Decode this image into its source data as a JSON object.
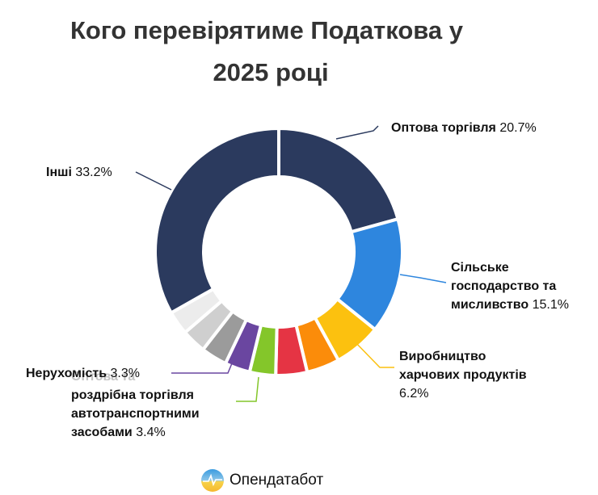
{
  "title_line1": "Кого перевірятиме Податкова у",
  "title_line2": "2025 році",
  "labels": {
    "wholesale": {
      "name": "Оптова торгівля",
      "value": "20.7%"
    },
    "agriculture": {
      "line1": "Сільське",
      "line2": "господарство та",
      "line3": "мисливство",
      "value": "15.1%"
    },
    "food": {
      "line1": "Виробництво",
      "line2": "харчових продуктів",
      "value": "6.2%"
    },
    "real_estate": {
      "name": "Нерухомість",
      "value": "3.3%"
    },
    "vehicles": {
      "line0": "Оптова та",
      "line1": "роздрібна торгівля",
      "line2": "автотранспортними",
      "line3": "засобами",
      "value": "3.4%"
    },
    "others": {
      "name": "Інші",
      "value": "33.2%"
    }
  },
  "logo": {
    "text": "Опендатабот"
  },
  "chart_data": {
    "type": "pie",
    "title": "Кого перевірятиме Податкова у 2025 році",
    "donut": true,
    "start_angle": "12 o'clock, clockwise",
    "categories": [
      "Оптова торгівля",
      "Сільське господарство та мисливство",
      "Виробництво харчових продуктів",
      "(unlabeled orange)",
      "(unlabeled red)",
      "Оптова та роздрібна торгівля автотранспортними засобами",
      "Нерухомість",
      "(unlabeled gray)",
      "(unlabeled light gray)",
      "(unlabeled lighter gray)",
      "Інші"
    ],
    "values": [
      20.7,
      15.1,
      6.2,
      4.3,
      4.1,
      3.4,
      3.3,
      3.4,
      3.2,
      3.1,
      33.2
    ],
    "colors": [
      "#2b3a5e",
      "#2e86de",
      "#fcc10f",
      "#fb8c0a",
      "#e53444",
      "#84c62a",
      "#6a46a0",
      "#9b9b9b",
      "#cfcfcf",
      "#ececec",
      "#2b3a5e"
    ],
    "legend": "callout labels"
  }
}
